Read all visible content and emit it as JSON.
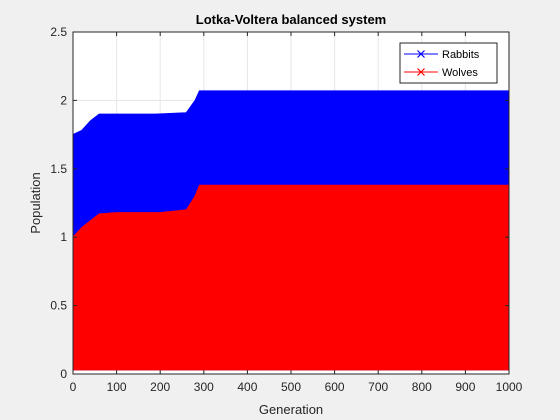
{
  "chart_data": {
    "type": "area",
    "title": "Lotka-Voltera balanced system",
    "xlabel": "Generation",
    "ylabel": "Population",
    "xlim": [
      0,
      1000
    ],
    "ylim": [
      0,
      2.5
    ],
    "xticks": [
      0,
      100,
      200,
      300,
      400,
      500,
      600,
      700,
      800,
      900,
      1000
    ],
    "yticks": [
      0,
      0.5,
      1,
      1.5,
      2,
      2.5
    ],
    "xtick_labels": [
      "0",
      "100",
      "200",
      "300",
      "400",
      "500",
      "600",
      "700",
      "800",
      "900",
      "1000"
    ],
    "ytick_labels": [
      "0",
      "0.5",
      "1",
      "1.5",
      "2",
      "2.5"
    ],
    "grid": true,
    "legend_position": "top-right",
    "marker": "x",
    "series": [
      {
        "name": "Rabbits",
        "color": "#0000ff",
        "upper_envelope": [
          [
            0,
            1.75
          ],
          [
            20,
            1.78
          ],
          [
            40,
            1.85
          ],
          [
            60,
            1.9
          ],
          [
            100,
            1.9
          ],
          [
            160,
            1.9
          ],
          [
            190,
            1.9
          ],
          [
            260,
            1.91
          ],
          [
            280,
            2.0
          ],
          [
            290,
            2.07
          ],
          [
            500,
            2.07
          ],
          [
            1000,
            2.07
          ]
        ],
        "lower_envelope": [
          [
            0,
            0.03
          ],
          [
            1000,
            0.03
          ]
        ]
      },
      {
        "name": "Wolves",
        "color": "#ff0000",
        "upper_envelope": [
          [
            0,
            1.0
          ],
          [
            20,
            1.07
          ],
          [
            40,
            1.12
          ],
          [
            60,
            1.17
          ],
          [
            100,
            1.18
          ],
          [
            200,
            1.18
          ],
          [
            260,
            1.2
          ],
          [
            280,
            1.3
          ],
          [
            290,
            1.38
          ],
          [
            500,
            1.38
          ],
          [
            1000,
            1.38
          ]
        ],
        "lower_envelope": [
          [
            0,
            0.03
          ],
          [
            1000,
            0.03
          ]
        ]
      }
    ]
  }
}
